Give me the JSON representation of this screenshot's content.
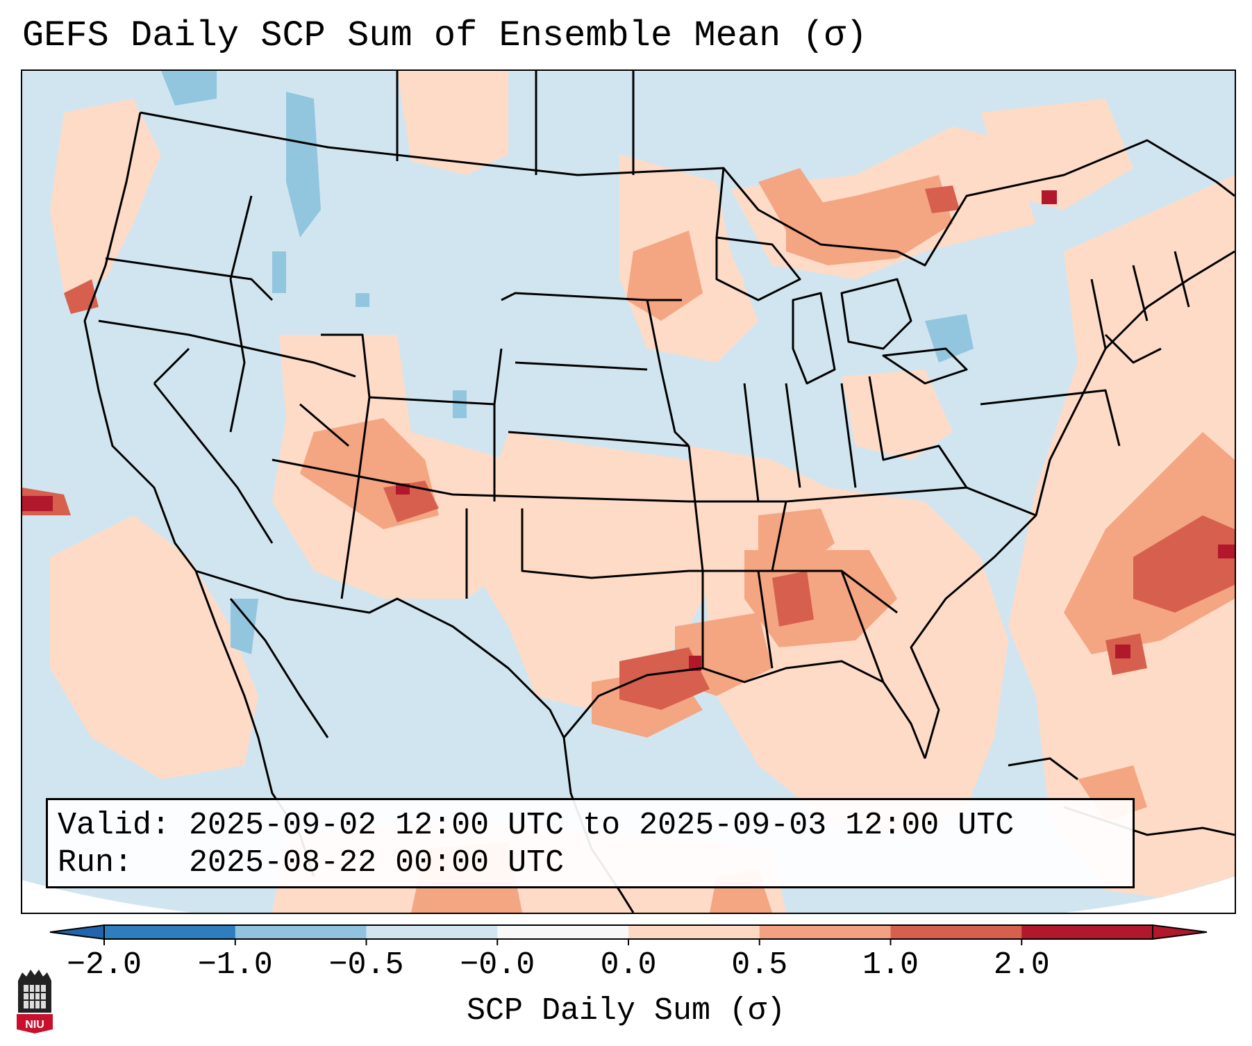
{
  "title": "GEFS Daily SCP Sum of Ensemble Mean (σ)",
  "info": {
    "valid_label": "Valid:",
    "valid_value": "2025-09-02 12:00 UTC to 2025-09-03 12:00 UTC",
    "run_label": "Run:",
    "run_value": "2025-08-22 00:00 UTC"
  },
  "colorbar": {
    "label": "SCP Daily Sum (σ)",
    "ticks": [
      "−2.0",
      "−1.0",
      "−0.5",
      "−0.0",
      "0.0",
      "0.5",
      "1.0",
      "2.0"
    ],
    "colors": [
      "#2e7dbd",
      "#91c3de",
      "#d1e4f0",
      "#f8f8f8",
      "#fdd9c4",
      "#f2a283",
      "#d5604d",
      "#b2182b"
    ]
  },
  "logo": {
    "text": "NIU"
  },
  "palette": {
    "ocean_blue": "#d1e5f0",
    "land_blue": "#d1e5f0",
    "light_red": "#fddbc7",
    "mid_red": "#f4a582",
    "strong_red": "#d6604d",
    "dark_red": "#b2182b",
    "mid_blue": "#92c5de"
  }
}
